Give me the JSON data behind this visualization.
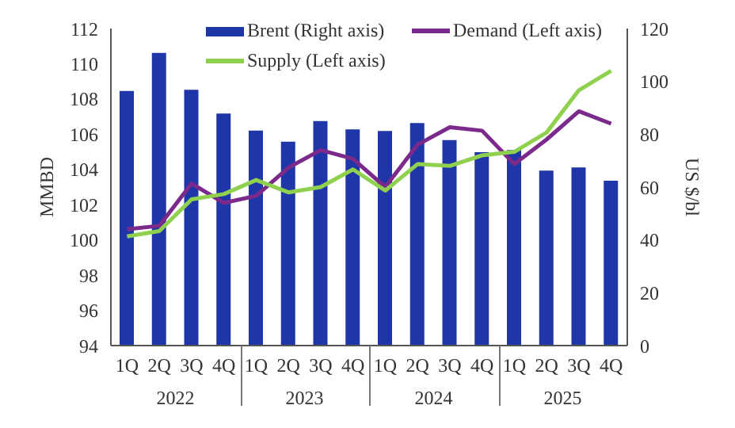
{
  "chart_data": {
    "type": "bar",
    "ylabel": "MMBD",
    "y2label": "US $/bl",
    "categories": [
      "1Q",
      "2Q",
      "3Q",
      "4Q",
      "1Q",
      "2Q",
      "3Q",
      "4Q",
      "1Q",
      "2Q",
      "3Q",
      "4Q",
      "1Q",
      "2Q",
      "3Q",
      "4Q"
    ],
    "annotations": [
      "2022",
      "2023",
      "2024",
      "2025"
    ],
    "series": [
      {
        "name": "Brent (Right axis)",
        "axis": "y2",
        "color": "#1f36a8",
        "values": [
          96.4,
          110.8,
          96.8,
          87.8,
          81.4,
          77.2,
          85,
          81.8,
          81.2,
          84.2,
          77.8,
          73.2,
          74,
          66.2,
          67.4,
          62.4
        ]
      },
      {
        "name": "Demand (Left axis)",
        "type": "line",
        "color": "#7b2a8c",
        "values": [
          100.6,
          100.8,
          103.2,
          102.1,
          102.5,
          104.1,
          105.1,
          104.6,
          103.0,
          105.4,
          106.4,
          106.2,
          104.3,
          105.7,
          107.3,
          106.6
        ]
      },
      {
        "name": "Supply (Left axis)",
        "type": "line",
        "color": "#8fd14f",
        "values": [
          100.2,
          100.5,
          102.3,
          102.6,
          103.4,
          102.7,
          103.0,
          104.0,
          102.8,
          104.3,
          104.2,
          104.8,
          105.0,
          106.1,
          108.5,
          109.6
        ]
      }
    ],
    "ylim": [
      94,
      112
    ],
    "yticks": [
      94,
      96,
      98,
      100,
      102,
      104,
      106,
      108,
      110,
      112
    ],
    "y2lim": [
      0,
      120
    ],
    "y2ticks": [
      0,
      20,
      40,
      60,
      80,
      100,
      120
    ],
    "legend": "top",
    "marker": "none",
    "line_style": "solid"
  }
}
